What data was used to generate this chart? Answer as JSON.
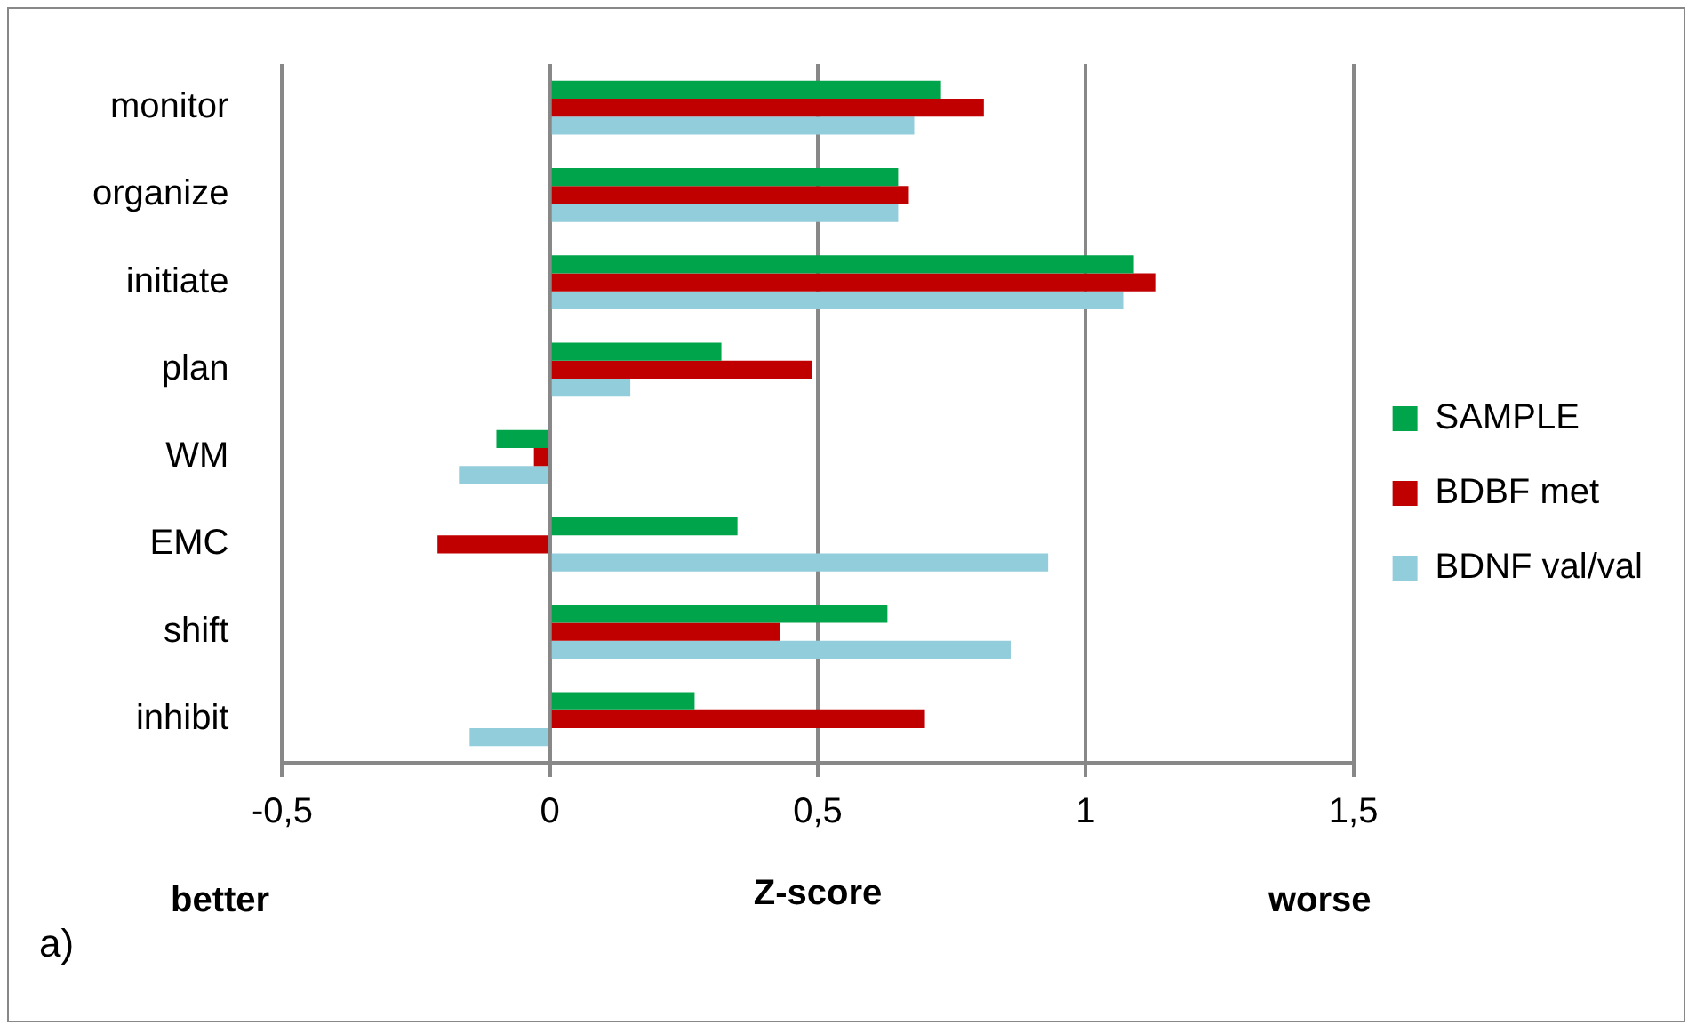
{
  "chart_data": {
    "type": "bar",
    "orientation": "horizontal",
    "xlabel": "Z-score",
    "categories": [
      "monitor",
      "organize",
      "initiate",
      "plan",
      "WM",
      "EMC",
      "shift",
      "inhibit"
    ],
    "series": [
      {
        "name": "SAMPLE",
        "color": "#00a44a",
        "values": [
          0.73,
          0.65,
          1.09,
          0.32,
          -0.1,
          0.35,
          0.63,
          0.27
        ]
      },
      {
        "name": "BDBF met",
        "color": "#c00000",
        "values": [
          0.81,
          0.67,
          1.13,
          0.49,
          -0.03,
          -0.21,
          0.43,
          0.7
        ]
      },
      {
        "name": "BDNF val/val",
        "color": "#92cddc",
        "values": [
          0.68,
          0.65,
          1.07,
          0.15,
          -0.17,
          0.93,
          0.86,
          -0.15
        ]
      }
    ],
    "xlim": [
      -0.5,
      1.5
    ],
    "xticks": [
      {
        "value": -0.5,
        "label": "-0,5"
      },
      0,
      {
        "value": 0.5,
        "label": "0,5"
      },
      1,
      {
        "value": 1.5,
        "label": "1,5"
      }
    ],
    "grid": "x",
    "legend": "right",
    "annotations": [
      "better",
      "worse",
      "a)"
    ]
  }
}
